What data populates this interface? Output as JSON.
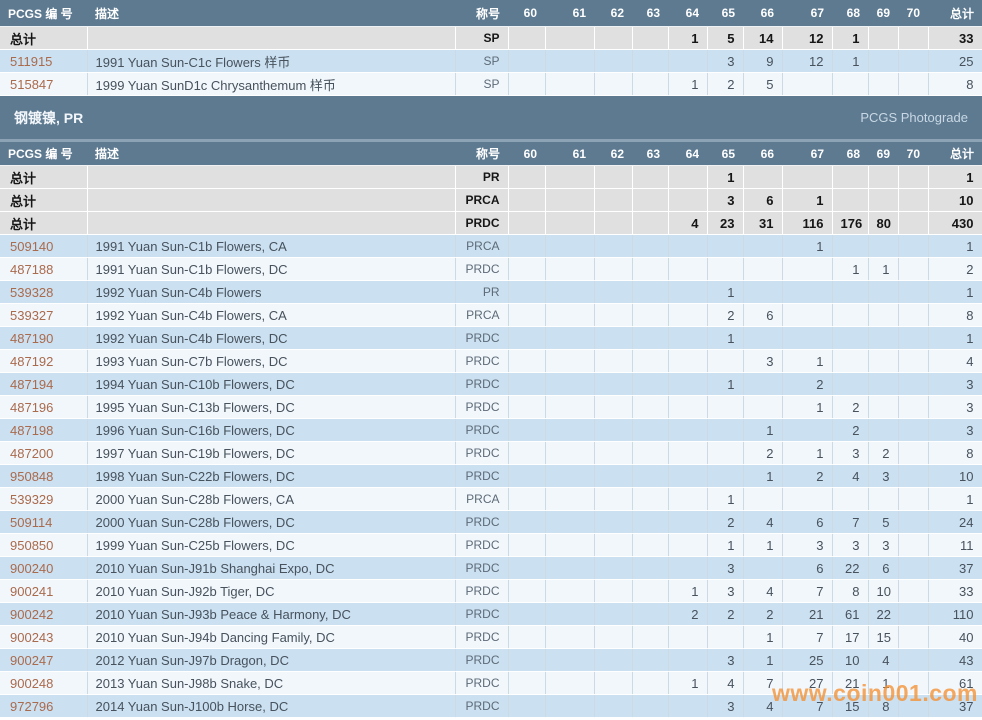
{
  "header": {
    "columns": [
      "PCGS 编 号",
      "描述",
      "称号",
      "60",
      "61",
      "62",
      "63",
      "64",
      "65",
      "66",
      "67",
      "68",
      "69",
      "70",
      "总计"
    ]
  },
  "section": {
    "title": "钢镀镍, PR",
    "photograde_label": "PCGS Photograde"
  },
  "watermark": {
    "text": "www.coin001.com"
  },
  "colors": {
    "header_bg": "#5d7a91",
    "row_blue": "#cbe0f1",
    "row_light": "#f2f7fc",
    "total_row_bg": "#e0e0e0",
    "id_link": "#aa6a4c",
    "watermark_orange": "#f49236"
  },
  "sp_table": {
    "rows": [
      {
        "kind": "total",
        "cells": [
          "总计",
          "",
          "SP",
          "",
          "",
          "",
          "",
          "1",
          "5",
          "14",
          "12",
          "1",
          "",
          "",
          "33"
        ]
      },
      {
        "kind": "data",
        "cells": [
          "511915",
          "1991 Yuan Sun-C1c Flowers 样币",
          "SP",
          "",
          "",
          "",
          "",
          "",
          "3",
          "9",
          "12",
          "1",
          "",
          "",
          "25"
        ]
      },
      {
        "kind": "data",
        "cells": [
          "515847",
          "1999 Yuan SunD1c Chrysanthemum 样币",
          "SP",
          "",
          "",
          "",
          "",
          "1",
          "2",
          "5",
          "",
          "",
          "",
          "",
          "8"
        ]
      }
    ]
  },
  "pr_table": {
    "rows": [
      {
        "kind": "total",
        "cells": [
          "总计",
          "",
          "PR",
          "",
          "",
          "",
          "",
          "",
          "1",
          "",
          "",
          "",
          "",
          "",
          "1"
        ]
      },
      {
        "kind": "total",
        "cells": [
          "总计",
          "",
          "PRCA",
          "",
          "",
          "",
          "",
          "",
          "3",
          "6",
          "1",
          "",
          "",
          "",
          "10"
        ]
      },
      {
        "kind": "total",
        "cells": [
          "总计",
          "",
          "PRDC",
          "",
          "",
          "",
          "",
          "4",
          "23",
          "31",
          "116",
          "176",
          "80",
          "",
          "430"
        ]
      },
      {
        "kind": "data",
        "cells": [
          "509140",
          "1991 Yuan Sun-C1b Flowers, CA",
          "PRCA",
          "",
          "",
          "",
          "",
          "",
          "",
          "",
          "1",
          "",
          "",
          "",
          "1"
        ]
      },
      {
        "kind": "data",
        "cells": [
          "487188",
          "1991 Yuan Sun-C1b Flowers, DC",
          "PRDC",
          "",
          "",
          "",
          "",
          "",
          "",
          "",
          "",
          "1",
          "1",
          "",
          "2"
        ]
      },
      {
        "kind": "data",
        "cells": [
          "539328",
          "1992 Yuan Sun-C4b Flowers",
          "PR",
          "",
          "",
          "",
          "",
          "",
          "1",
          "",
          "",
          "",
          "",
          "",
          "1"
        ]
      },
      {
        "kind": "data",
        "cells": [
          "539327",
          "1992 Yuan Sun-C4b Flowers, CA",
          "PRCA",
          "",
          "",
          "",
          "",
          "",
          "2",
          "6",
          "",
          "",
          "",
          "",
          "8"
        ]
      },
      {
        "kind": "data",
        "cells": [
          "487190",
          "1992 Yuan Sun-C4b Flowers, DC",
          "PRDC",
          "",
          "",
          "",
          "",
          "",
          "1",
          "",
          "",
          "",
          "",
          "",
          "1"
        ]
      },
      {
        "kind": "data",
        "cells": [
          "487192",
          "1993 Yuan Sun-C7b Flowers, DC",
          "PRDC",
          "",
          "",
          "",
          "",
          "",
          "",
          "3",
          "1",
          "",
          "",
          "",
          "4"
        ]
      },
      {
        "kind": "data",
        "cells": [
          "487194",
          "1994 Yuan Sun-C10b Flowers, DC",
          "PRDC",
          "",
          "",
          "",
          "",
          "",
          "1",
          "",
          "2",
          "",
          "",
          "",
          "3"
        ]
      },
      {
        "kind": "data",
        "cells": [
          "487196",
          "1995 Yuan Sun-C13b Flowers, DC",
          "PRDC",
          "",
          "",
          "",
          "",
          "",
          "",
          "",
          "1",
          "2",
          "",
          "",
          "3"
        ]
      },
      {
        "kind": "data",
        "cells": [
          "487198",
          "1996 Yuan Sun-C16b Flowers, DC",
          "PRDC",
          "",
          "",
          "",
          "",
          "",
          "",
          "1",
          "",
          "2",
          "",
          "",
          "3"
        ]
      },
      {
        "kind": "data",
        "cells": [
          "487200",
          "1997 Yuan Sun-C19b Flowers, DC",
          "PRDC",
          "",
          "",
          "",
          "",
          "",
          "",
          "2",
          "1",
          "3",
          "2",
          "",
          "8"
        ]
      },
      {
        "kind": "data",
        "cells": [
          "950848",
          "1998 Yuan Sun-C22b Flowers, DC",
          "PRDC",
          "",
          "",
          "",
          "",
          "",
          "",
          "1",
          "2",
          "4",
          "3",
          "",
          "10"
        ]
      },
      {
        "kind": "data",
        "cells": [
          "539329",
          "2000 Yuan Sun-C28b Flowers, CA",
          "PRCA",
          "",
          "",
          "",
          "",
          "",
          "1",
          "",
          "",
          "",
          "",
          "",
          "1"
        ]
      },
      {
        "kind": "data",
        "cells": [
          "509114",
          "2000 Yuan Sun-C28b Flowers, DC",
          "PRDC",
          "",
          "",
          "",
          "",
          "",
          "2",
          "4",
          "6",
          "7",
          "5",
          "",
          "24"
        ]
      },
      {
        "kind": "data",
        "cells": [
          "950850",
          "1999 Yuan Sun-C25b Flowers, DC",
          "PRDC",
          "",
          "",
          "",
          "",
          "",
          "1",
          "1",
          "3",
          "3",
          "3",
          "",
          "11"
        ]
      },
      {
        "kind": "data",
        "cells": [
          "900240",
          "2010 Yuan Sun-J91b Shanghai Expo, DC",
          "PRDC",
          "",
          "",
          "",
          "",
          "",
          "3",
          "",
          "6",
          "22",
          "6",
          "",
          "37"
        ]
      },
      {
        "kind": "data",
        "cells": [
          "900241",
          "2010 Yuan Sun-J92b Tiger, DC",
          "PRDC",
          "",
          "",
          "",
          "",
          "1",
          "3",
          "4",
          "7",
          "8",
          "10",
          "",
          "33"
        ]
      },
      {
        "kind": "data",
        "cells": [
          "900242",
          "2010 Yuan Sun-J93b Peace & Harmony, DC",
          "PRDC",
          "",
          "",
          "",
          "",
          "2",
          "2",
          "2",
          "21",
          "61",
          "22",
          "",
          "110"
        ]
      },
      {
        "kind": "data",
        "cells": [
          "900243",
          "2010 Yuan Sun-J94b Dancing Family, DC",
          "PRDC",
          "",
          "",
          "",
          "",
          "",
          "",
          "1",
          "7",
          "17",
          "15",
          "",
          "40"
        ]
      },
      {
        "kind": "data",
        "cells": [
          "900247",
          "2012 Yuan Sun-J97b Dragon, DC",
          "PRDC",
          "",
          "",
          "",
          "",
          "",
          "3",
          "1",
          "25",
          "10",
          "4",
          "",
          "43"
        ]
      },
      {
        "kind": "data",
        "cells": [
          "900248",
          "2013 Yuan Sun-J98b Snake, DC",
          "PRDC",
          "",
          "",
          "",
          "",
          "1",
          "4",
          "7",
          "27",
          "21",
          "1",
          "",
          "61"
        ]
      },
      {
        "kind": "data",
        "cells": [
          "972796",
          "2014 Yuan Sun-J100b Horse, DC",
          "PRDC",
          "",
          "",
          "",
          "",
          "",
          "3",
          "4",
          "7",
          "15",
          "8",
          "",
          "37"
        ]
      }
    ]
  }
}
